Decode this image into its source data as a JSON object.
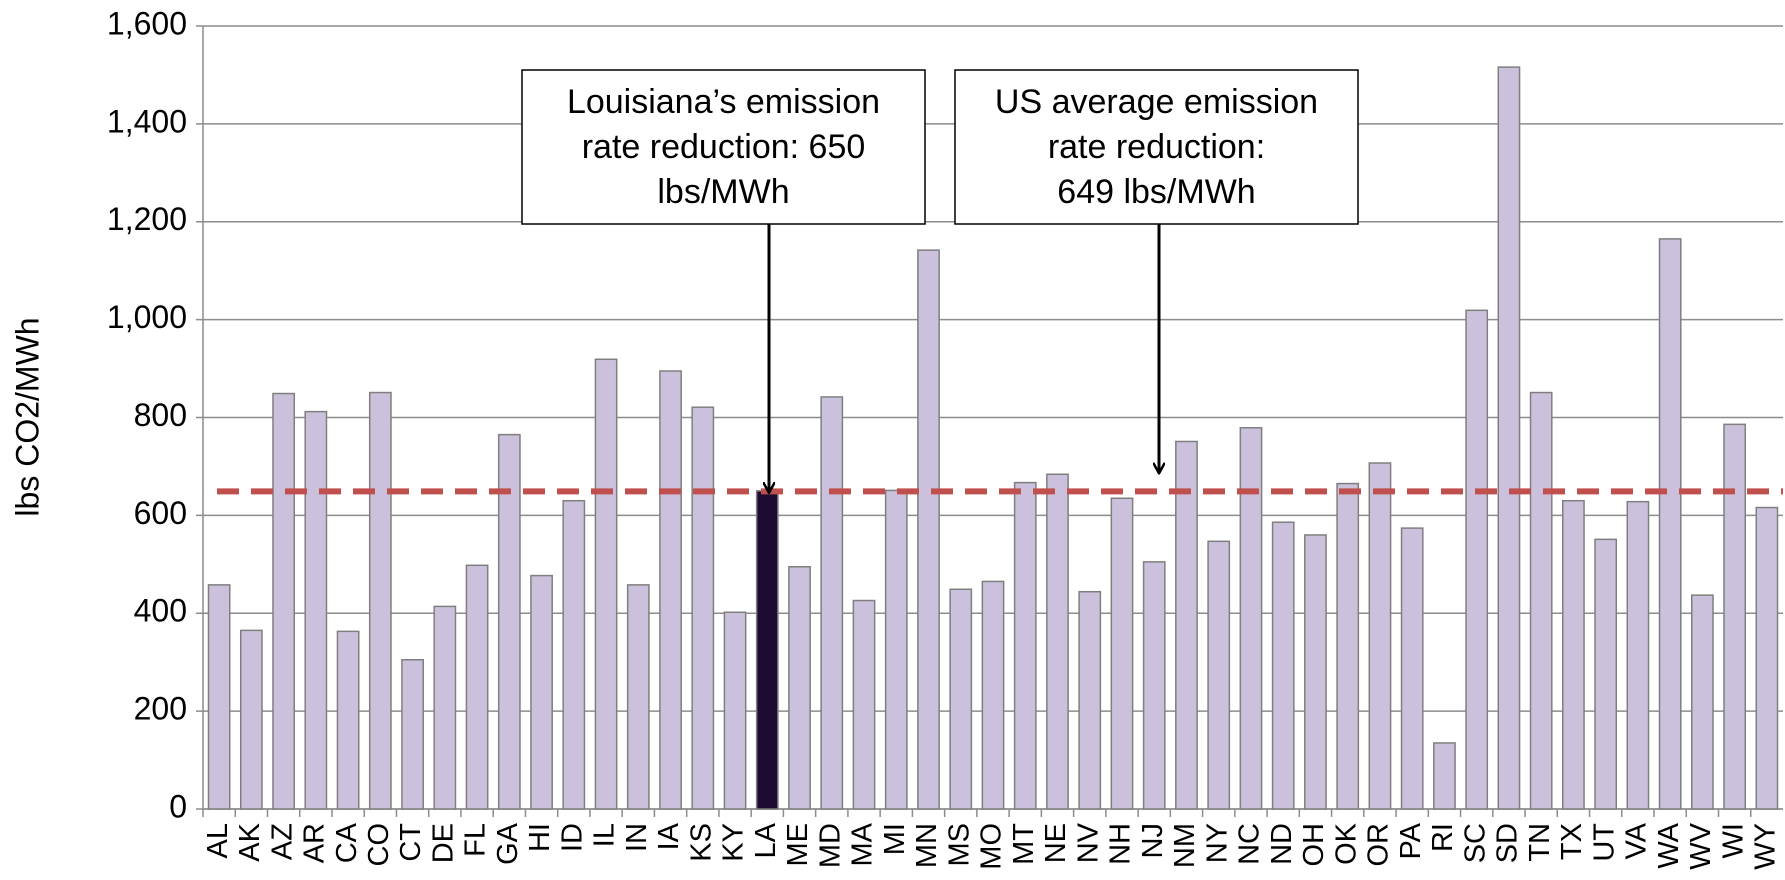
{
  "chart_data": {
    "type": "bar",
    "y_label": "lbs CO2/MWh",
    "categories": [
      "AL",
      "AK",
      "AZ",
      "AR",
      "CA",
      "CO",
      "CT",
      "DE",
      "FL",
      "GA",
      "HI",
      "ID",
      "IL",
      "IN",
      "IA",
      "KS",
      "KY",
      "LA",
      "ME",
      "MD",
      "MA",
      "MI",
      "MN",
      "MS",
      "MO",
      "MT",
      "NE",
      "NV",
      "NH",
      "NJ",
      "NM",
      "NY",
      "NC",
      "ND",
      "OH",
      "OK",
      "OR",
      "PA",
      "RI",
      "SC",
      "SD",
      "TN",
      "TX",
      "UT",
      "VA",
      "WA",
      "WV",
      "WI",
      "WY"
    ],
    "values": [
      458,
      365,
      849,
      812,
      363,
      851,
      305,
      414,
      498,
      765,
      477,
      630,
      919,
      458,
      895,
      821,
      402,
      650,
      495,
      842,
      426,
      651,
      1142,
      449,
      465,
      667,
      684,
      444,
      635,
      505,
      751,
      547,
      779,
      586,
      560,
      665,
      707,
      574,
      135,
      1019,
      1516,
      851,
      630,
      551,
      628,
      1165,
      437,
      786,
      616
    ],
    "color": "#ccc1dc",
    "highlight": {
      "index": 17,
      "color": "#1e0a33"
    },
    "reference_line": {
      "value": 649,
      "color": "#c0504d"
    },
    "ylim": [
      0,
      1600
    ],
    "yticks": [
      0,
      200,
      400,
      600,
      800,
      {
        "value": 1000,
        "label": "1,000"
      },
      {
        "value": 1200,
        "label": "1,200"
      },
      {
        "value": 1400,
        "label": "1,400"
      },
      {
        "value": 1600,
        "label": "1,600"
      }
    ],
    "grid": true,
    "annotations": [
      {
        "lines": [
          "Louisiana’s emission",
          "rate reduction: 650",
          "lbs/MWh"
        ]
      },
      {
        "lines": [
          "US average emission",
          "rate reduction:",
          "649 lbs/MWh"
        ]
      }
    ]
  }
}
